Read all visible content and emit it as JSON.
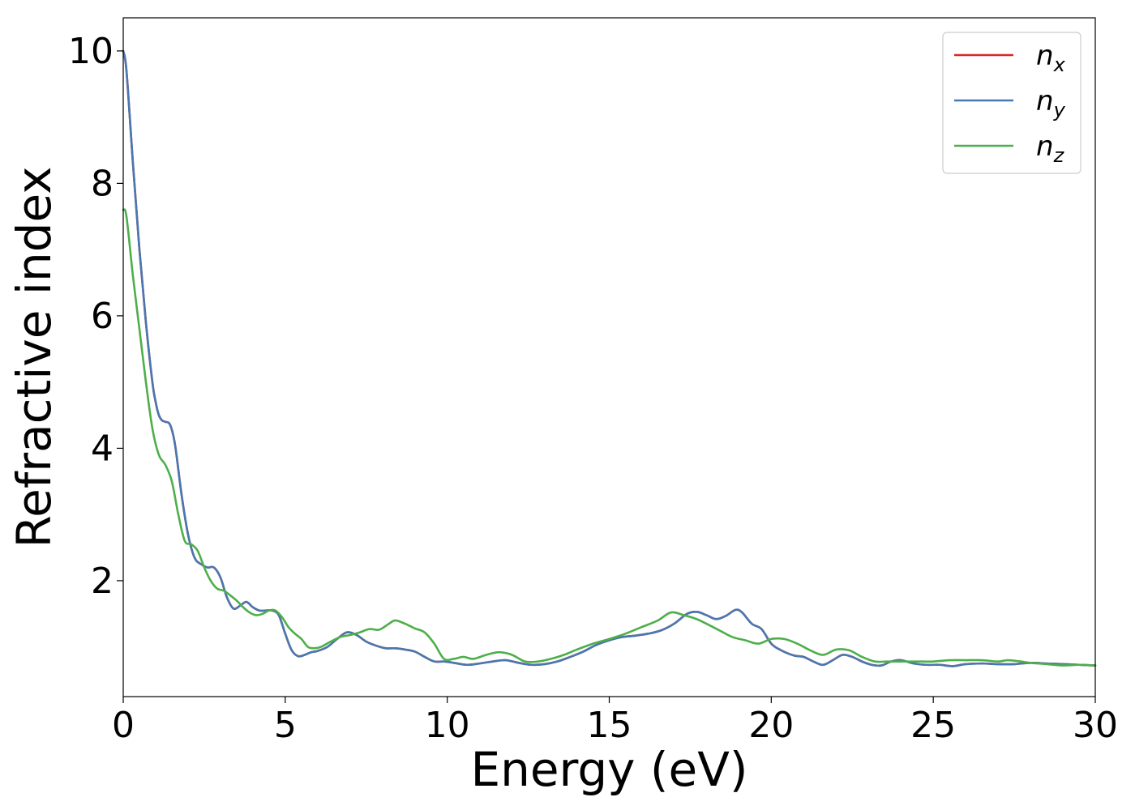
{
  "chart_data": {
    "type": "line",
    "title": "",
    "xlabel": "Energy (eV)",
    "ylabel": "Refractive index",
    "xlim": [
      0,
      30
    ],
    "ylim": [
      0.25,
      10.5
    ],
    "xticks": [
      0,
      5,
      10,
      15,
      20,
      25,
      30
    ],
    "yticks": [
      2,
      4,
      6,
      8,
      10
    ],
    "grid": false,
    "legend_position": "top-right",
    "series": [
      {
        "name": "n",
        "subscript": "x",
        "color": "#d62728",
        "x": [
          0,
          0.1,
          0.3,
          0.5,
          0.7,
          0.9,
          1.0,
          1.1,
          1.2,
          1.3,
          1.45,
          1.6,
          1.8,
          2.0,
          2.2,
          2.4,
          2.6,
          2.8,
          3.0,
          3.2,
          3.4,
          3.6,
          3.8,
          4.0,
          4.2,
          4.4,
          4.6,
          4.8,
          5.0,
          5.2,
          5.4,
          5.6,
          5.8,
          6.0,
          6.3,
          6.6,
          6.9,
          7.2,
          7.5,
          7.8,
          8.1,
          8.4,
          8.7,
          9.0,
          9.3,
          9.6,
          9.9,
          10.2,
          10.6,
          11.0,
          11.4,
          11.8,
          12.2,
          12.6,
          13.0,
          13.4,
          13.8,
          14.2,
          14.6,
          15.0,
          15.4,
          15.8,
          16.2,
          16.6,
          17.0,
          17.4,
          17.7,
          18.0,
          18.3,
          18.6,
          18.9,
          19.1,
          19.4,
          19.7,
          20.0,
          20.3,
          20.7,
          21.0,
          21.3,
          21.6,
          21.9,
          22.2,
          22.5,
          22.8,
          23.1,
          23.4,
          23.7,
          24.0,
          24.4,
          24.8,
          25.2,
          25.6,
          26.0,
          26.5,
          27.0,
          27.5,
          28.0,
          28.5,
          29.0,
          29.5,
          30.0
        ],
        "y": [
          10.0,
          9.7,
          8.3,
          7.0,
          5.9,
          5.0,
          4.7,
          4.5,
          4.42,
          4.4,
          4.35,
          4.05,
          3.3,
          2.7,
          2.35,
          2.25,
          2.2,
          2.2,
          2.05,
          1.75,
          1.58,
          1.62,
          1.68,
          1.6,
          1.55,
          1.55,
          1.55,
          1.48,
          1.2,
          0.95,
          0.86,
          0.88,
          0.92,
          0.94,
          1.0,
          1.12,
          1.22,
          1.18,
          1.08,
          1.02,
          0.98,
          0.98,
          0.96,
          0.93,
          0.85,
          0.78,
          0.78,
          0.76,
          0.73,
          0.75,
          0.78,
          0.8,
          0.76,
          0.73,
          0.74,
          0.78,
          0.85,
          0.93,
          1.03,
          1.1,
          1.15,
          1.17,
          1.2,
          1.25,
          1.35,
          1.5,
          1.53,
          1.48,
          1.42,
          1.47,
          1.56,
          1.52,
          1.35,
          1.27,
          1.05,
          0.95,
          0.87,
          0.85,
          0.78,
          0.73,
          0.8,
          0.88,
          0.85,
          0.78,
          0.73,
          0.72,
          0.78,
          0.8,
          0.75,
          0.73,
          0.73,
          0.71,
          0.74,
          0.75,
          0.74,
          0.74,
          0.76,
          0.75,
          0.74,
          0.73,
          0.72
        ]
      },
      {
        "name": "n",
        "subscript": "y",
        "color": "#4878b0",
        "x": [
          0,
          0.1,
          0.3,
          0.5,
          0.7,
          0.9,
          1.0,
          1.1,
          1.2,
          1.3,
          1.45,
          1.6,
          1.8,
          2.0,
          2.2,
          2.4,
          2.6,
          2.8,
          3.0,
          3.2,
          3.4,
          3.6,
          3.8,
          4.0,
          4.2,
          4.4,
          4.6,
          4.8,
          5.0,
          5.2,
          5.4,
          5.6,
          5.8,
          6.0,
          6.3,
          6.6,
          6.9,
          7.2,
          7.5,
          7.8,
          8.1,
          8.4,
          8.7,
          9.0,
          9.3,
          9.6,
          9.9,
          10.2,
          10.6,
          11.0,
          11.4,
          11.8,
          12.2,
          12.6,
          13.0,
          13.4,
          13.8,
          14.2,
          14.6,
          15.0,
          15.4,
          15.8,
          16.2,
          16.6,
          17.0,
          17.4,
          17.7,
          18.0,
          18.3,
          18.6,
          18.9,
          19.1,
          19.4,
          19.7,
          20.0,
          20.3,
          20.7,
          21.0,
          21.3,
          21.6,
          21.9,
          22.2,
          22.5,
          22.8,
          23.1,
          23.4,
          23.7,
          24.0,
          24.4,
          24.8,
          25.2,
          25.6,
          26.0,
          26.5,
          27.0,
          27.5,
          28.0,
          28.5,
          29.0,
          29.5,
          30.0
        ],
        "y": [
          10.0,
          9.7,
          8.3,
          7.0,
          5.9,
          5.0,
          4.7,
          4.5,
          4.42,
          4.4,
          4.35,
          4.05,
          3.3,
          2.7,
          2.35,
          2.25,
          2.2,
          2.2,
          2.05,
          1.75,
          1.58,
          1.62,
          1.68,
          1.6,
          1.55,
          1.55,
          1.55,
          1.48,
          1.2,
          0.95,
          0.86,
          0.88,
          0.92,
          0.94,
          1.0,
          1.12,
          1.22,
          1.18,
          1.08,
          1.02,
          0.98,
          0.98,
          0.96,
          0.93,
          0.85,
          0.78,
          0.78,
          0.76,
          0.73,
          0.75,
          0.78,
          0.8,
          0.76,
          0.73,
          0.74,
          0.78,
          0.85,
          0.93,
          1.03,
          1.1,
          1.15,
          1.17,
          1.2,
          1.25,
          1.35,
          1.5,
          1.53,
          1.48,
          1.42,
          1.47,
          1.56,
          1.52,
          1.35,
          1.27,
          1.05,
          0.95,
          0.87,
          0.85,
          0.78,
          0.73,
          0.8,
          0.88,
          0.85,
          0.78,
          0.73,
          0.72,
          0.78,
          0.8,
          0.75,
          0.73,
          0.73,
          0.71,
          0.74,
          0.75,
          0.74,
          0.74,
          0.76,
          0.75,
          0.74,
          0.73,
          0.72
        ]
      },
      {
        "name": "n",
        "subscript": "z",
        "color": "#4daf4a",
        "x": [
          0,
          0.1,
          0.3,
          0.5,
          0.7,
          0.9,
          1.1,
          1.3,
          1.5,
          1.7,
          1.9,
          2.1,
          2.3,
          2.5,
          2.7,
          2.9,
          3.1,
          3.3,
          3.5,
          3.7,
          3.9,
          4.1,
          4.3,
          4.5,
          4.7,
          4.9,
          5.1,
          5.3,
          5.5,
          5.7,
          5.9,
          6.1,
          6.4,
          6.7,
          7.0,
          7.3,
          7.6,
          7.9,
          8.2,
          8.4,
          8.7,
          9.0,
          9.3,
          9.6,
          9.9,
          10.2,
          10.5,
          10.8,
          11.2,
          11.6,
          12.0,
          12.4,
          12.8,
          13.2,
          13.6,
          14.0,
          14.5,
          15.0,
          15.5,
          16.0,
          16.5,
          16.9,
          17.3,
          17.7,
          18.0,
          18.4,
          18.8,
          19.2,
          19.6,
          20.0,
          20.4,
          20.8,
          21.2,
          21.6,
          22.0,
          22.4,
          22.8,
          23.2,
          23.6,
          24.0,
          24.5,
          25.0,
          25.5,
          26.0,
          26.5,
          27.0,
          27.3,
          27.7,
          28.0,
          28.5,
          29.0,
          29.5,
          30.0
        ],
        "y": [
          7.6,
          7.5,
          6.6,
          5.8,
          5.0,
          4.3,
          3.9,
          3.75,
          3.5,
          3.0,
          2.6,
          2.55,
          2.45,
          2.2,
          2.0,
          1.88,
          1.85,
          1.78,
          1.7,
          1.6,
          1.52,
          1.48,
          1.5,
          1.55,
          1.55,
          1.45,
          1.3,
          1.2,
          1.12,
          1.0,
          0.98,
          1.0,
          1.08,
          1.15,
          1.18,
          1.22,
          1.27,
          1.26,
          1.35,
          1.4,
          1.35,
          1.28,
          1.22,
          1.05,
          0.82,
          0.82,
          0.85,
          0.82,
          0.88,
          0.92,
          0.88,
          0.78,
          0.78,
          0.82,
          0.88,
          0.96,
          1.05,
          1.12,
          1.2,
          1.3,
          1.4,
          1.52,
          1.48,
          1.42,
          1.35,
          1.25,
          1.15,
          1.1,
          1.05,
          1.12,
          1.12,
          1.05,
          0.95,
          0.88,
          0.96,
          0.95,
          0.85,
          0.78,
          0.78,
          0.78,
          0.78,
          0.78,
          0.8,
          0.8,
          0.8,
          0.78,
          0.8,
          0.78,
          0.76,
          0.74,
          0.72,
          0.73,
          0.72
        ]
      }
    ]
  }
}
